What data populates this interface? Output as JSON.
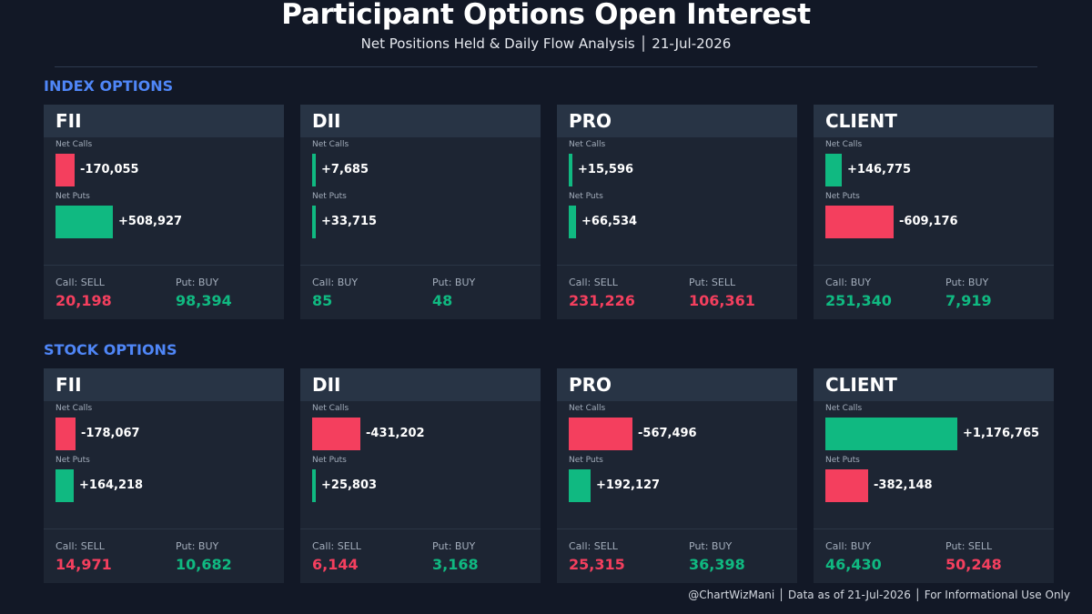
{
  "header": {
    "title": "Participant Options Open Interest",
    "subtitle": "Net Positions Held & Daily Flow Analysis  │  21-Jul-2026"
  },
  "colors": {
    "background": "#121826",
    "card": "#1d2533",
    "card_header": "#283445",
    "positive": "#10b981",
    "negative": "#f43f5e",
    "section_title": "#4f86f7"
  },
  "sections": [
    {
      "title": "INDEX OPTIONS"
    },
    {
      "title": "STOCK OPTIONS"
    }
  ],
  "chart_data": [
    {
      "type": "bar",
      "section": "INDEX OPTIONS",
      "participants": [
        {
          "name": "FII",
          "net_calls": -170055,
          "net_puts": 508927,
          "net_calls_label": "-170,055",
          "net_puts_label": "+508,927",
          "call_flow_label": "Call: SELL",
          "call_flow_value": "20,198",
          "call_flow_dir": "negative",
          "put_flow_label": "Put: BUY",
          "put_flow_value": "98,394",
          "put_flow_dir": "positive"
        },
        {
          "name": "DII",
          "net_calls": 7685,
          "net_puts": 33715,
          "net_calls_label": "+7,685",
          "net_puts_label": "+33,715",
          "call_flow_label": "Call: BUY",
          "call_flow_value": "85",
          "call_flow_dir": "positive",
          "put_flow_label": "Put: BUY",
          "put_flow_value": "48",
          "put_flow_dir": "positive"
        },
        {
          "name": "PRO",
          "net_calls": 15596,
          "net_puts": 66534,
          "net_calls_label": "+15,596",
          "net_puts_label": "+66,534",
          "call_flow_label": "Call: SELL",
          "call_flow_value": "231,226",
          "call_flow_dir": "negative",
          "put_flow_label": "Put: SELL",
          "put_flow_value": "106,361",
          "put_flow_dir": "negative"
        },
        {
          "name": "CLIENT",
          "net_calls": 146775,
          "net_puts": -609176,
          "net_calls_label": "+146,775",
          "net_puts_label": "-609,176",
          "call_flow_label": "Call: BUY",
          "call_flow_value": "251,340",
          "call_flow_dir": "positive",
          "put_flow_label": "Put: BUY",
          "put_flow_value": "7,919",
          "put_flow_dir": "positive"
        }
      ]
    },
    {
      "type": "bar",
      "section": "STOCK OPTIONS",
      "participants": [
        {
          "name": "FII",
          "net_calls": -178067,
          "net_puts": 164218,
          "net_calls_label": "-178,067",
          "net_puts_label": "+164,218",
          "call_flow_label": "Call: SELL",
          "call_flow_value": "14,971",
          "call_flow_dir": "negative",
          "put_flow_label": "Put: BUY",
          "put_flow_value": "10,682",
          "put_flow_dir": "positive"
        },
        {
          "name": "DII",
          "net_calls": -431202,
          "net_puts": 25803,
          "net_calls_label": "-431,202",
          "net_puts_label": "+25,803",
          "call_flow_label": "Call: SELL",
          "call_flow_value": "6,144",
          "call_flow_dir": "negative",
          "put_flow_label": "Put: BUY",
          "put_flow_value": "3,168",
          "put_flow_dir": "positive"
        },
        {
          "name": "PRO",
          "net_calls": -567496,
          "net_puts": 192127,
          "net_calls_label": "-567,496",
          "net_puts_label": "+192,127",
          "call_flow_label": "Call: SELL",
          "call_flow_value": "25,315",
          "call_flow_dir": "negative",
          "put_flow_label": "Put: BUY",
          "put_flow_value": "36,398",
          "put_flow_dir": "positive"
        },
        {
          "name": "CLIENT",
          "net_calls": 1176765,
          "net_puts": -382148,
          "net_calls_label": "+1,176,765",
          "net_puts_label": "-382,148",
          "call_flow_label": "Call: BUY",
          "call_flow_value": "46,430",
          "call_flow_dir": "positive",
          "put_flow_label": "Put: SELL",
          "put_flow_value": "50,248",
          "put_flow_dir": "negative"
        }
      ]
    }
  ],
  "labels": {
    "net_calls": "Net Calls",
    "net_puts": "Net Puts"
  },
  "footer": {
    "text": "@ChartWizMani │ Data as of 21-Jul-2026 │ For Informational Use Only"
  }
}
